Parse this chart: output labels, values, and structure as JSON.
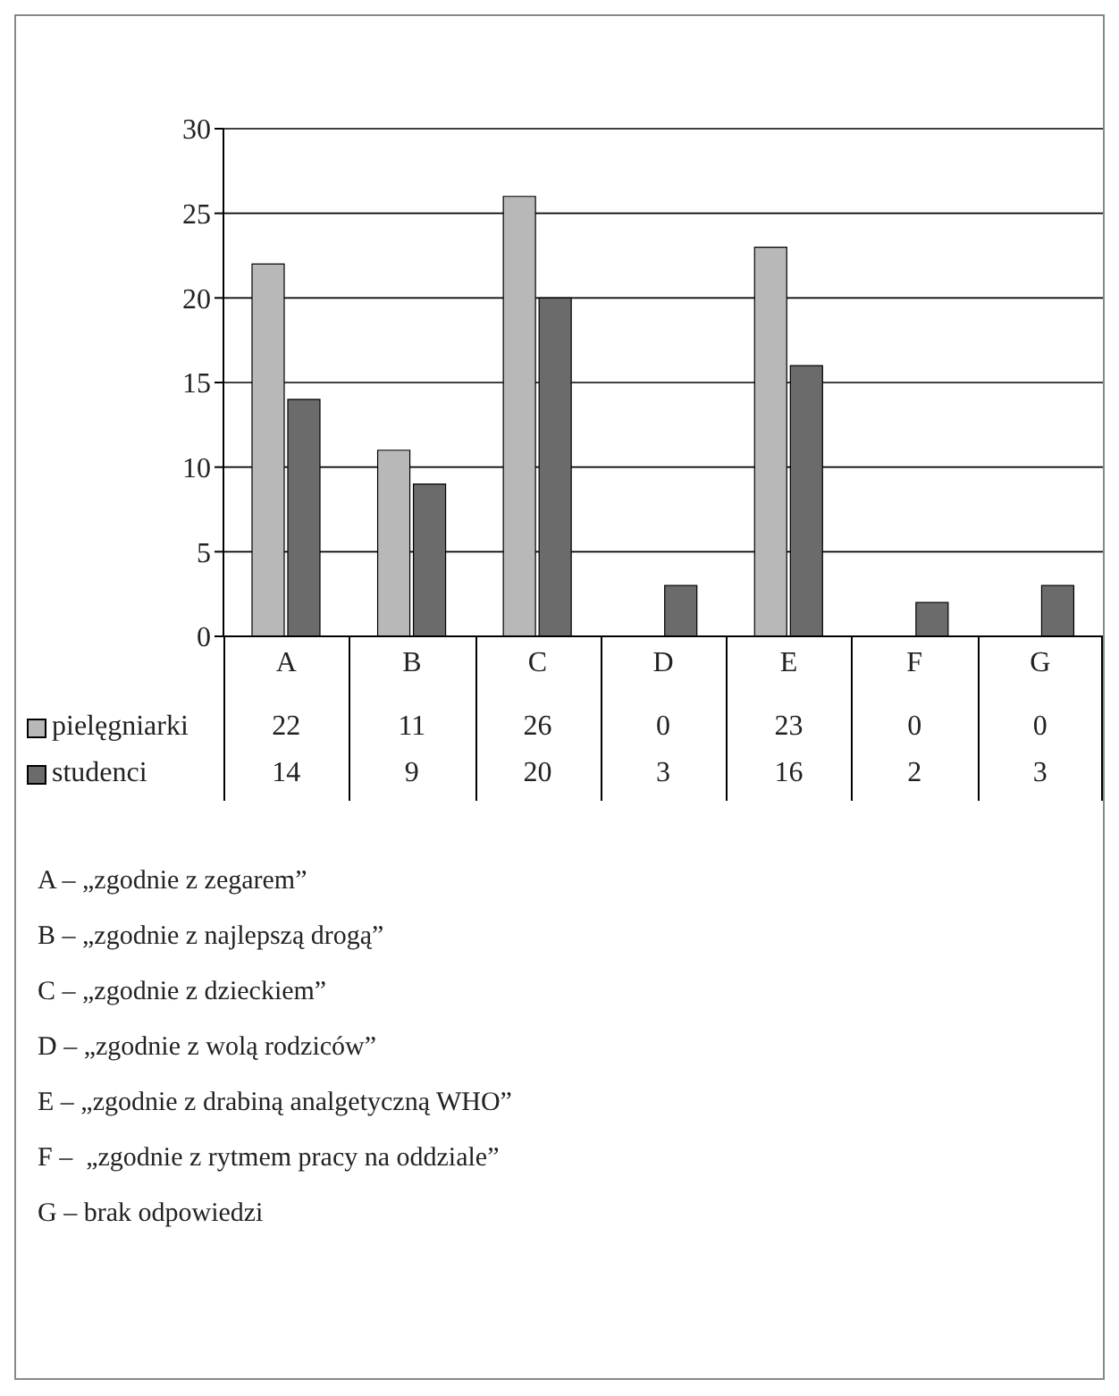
{
  "chart_data": {
    "type": "bar",
    "categories": [
      "A",
      "B",
      "C",
      "D",
      "E",
      "F",
      "G"
    ],
    "series": [
      {
        "name": "pielęgniarki",
        "color": "#b8b8b8",
        "values": [
          22,
          11,
          26,
          0,
          23,
          0,
          0
        ]
      },
      {
        "name": "studenci",
        "color": "#6b6b6b",
        "values": [
          14,
          9,
          20,
          3,
          16,
          2,
          3
        ]
      }
    ],
    "ylim": [
      0,
      30
    ],
    "yticks": [
      0,
      5,
      10,
      15,
      20,
      25,
      30
    ],
    "grid": "y",
    "legend": "bottom left",
    "data_labels": true,
    "annotations": [
      "A – „zgodnie z zegarem”",
      "B – „zgodnie z najlepszą drogą”",
      "C – „zgodnie z dzieckiem”",
      "D – „zgodnie z wolą rodziców”",
      "E – „zgodnie z drabiną analgetyczną WHO”",
      "F –  „zgodnie z rytmem pracy na oddziale”",
      "G – brak odpowiedzi"
    ]
  }
}
